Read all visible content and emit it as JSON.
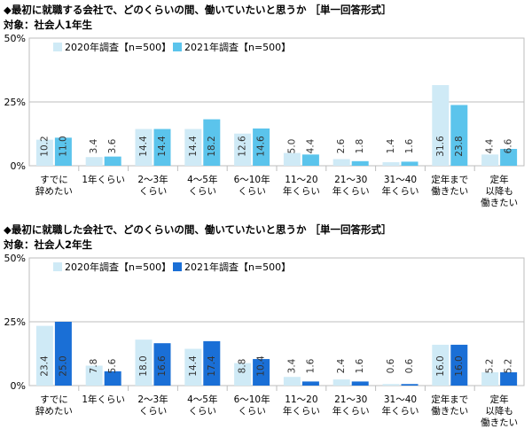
{
  "chart_data": [
    {
      "type": "bar",
      "title": "◆最初に就職する会社で、どのくらいの間、働いていたいと思うか ［単一回答形式］",
      "subtitle": "対象：社会人1年生",
      "categories": [
        [
          "すでに",
          "辞めたい"
        ],
        [
          "1年くらい"
        ],
        [
          "2～3年",
          "くらい"
        ],
        [
          "4～5年",
          "くらい"
        ],
        [
          "6～10年",
          "くらい"
        ],
        [
          "11～20",
          "年くらい"
        ],
        [
          "21～30",
          "年くらい"
        ],
        [
          "31～40",
          "年くらい"
        ],
        [
          "定年まで",
          "働きたい"
        ],
        [
          "定年",
          "以降も",
          "働きたい"
        ]
      ],
      "series": [
        {
          "name": "2020年調査【n=500】",
          "values": [
            10.2,
            3.4,
            14.4,
            14.4,
            12.6,
            5.0,
            2.6,
            1.4,
            31.6,
            4.4
          ],
          "color": "#cfeaf6"
        },
        {
          "name": "2021年調査【n=500】",
          "values": [
            11.0,
            3.6,
            14.4,
            18.2,
            14.6,
            4.4,
            1.8,
            1.6,
            23.8,
            6.6
          ],
          "color": "#5bc4ec"
        }
      ],
      "ylim": [
        0,
        50
      ],
      "yticks": [
        "0%",
        "25%",
        "50%"
      ],
      "legend": "top-left"
    },
    {
      "type": "bar",
      "title": "◆最初に就職した会社で、どのくらいの間、働いていたいと思うか ［単一回答形式］",
      "subtitle": "対象：社会人2年生",
      "categories": [
        [
          "すでに",
          "辞めたい"
        ],
        [
          "1年くらい"
        ],
        [
          "2～3年",
          "くらい"
        ],
        [
          "4～5年",
          "くらい"
        ],
        [
          "6～10年",
          "くらい"
        ],
        [
          "11～20",
          "年くらい"
        ],
        [
          "21～30",
          "年くらい"
        ],
        [
          "31～40",
          "年くらい"
        ],
        [
          "定年まで",
          "働きたい"
        ],
        [
          "定年",
          "以降も",
          "働きたい"
        ]
      ],
      "series": [
        {
          "name": "2020年調査【n=500】",
          "values": [
            23.4,
            7.8,
            18.0,
            14.4,
            8.8,
            3.4,
            2.4,
            0.6,
            16.0,
            5.2
          ],
          "color": "#cfeaf6"
        },
        {
          "name": "2021年調査【n=500】",
          "values": [
            25.0,
            5.6,
            16.6,
            17.4,
            10.4,
            1.6,
            1.6,
            0.6,
            16.0,
            5.2
          ],
          "color": "#1a6fd6"
        }
      ],
      "ylim": [
        0,
        50
      ],
      "yticks": [
        "0%",
        "25%",
        "50%"
      ],
      "legend": "top-left"
    }
  ]
}
